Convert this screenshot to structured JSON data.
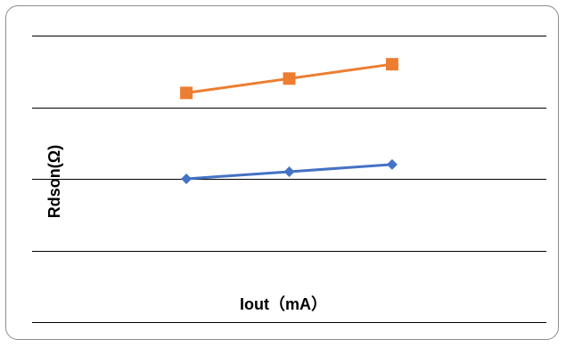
{
  "chart_data": {
    "type": "line",
    "title": "",
    "xlabel": "Iout（mA）",
    "ylabel": "Rdson(Ω)",
    "x": [
      1,
      2,
      3
    ],
    "xlim": [
      -0.5,
      4.5
    ],
    "ylim": [
      0,
      4
    ],
    "grid": true,
    "legend": "none",
    "series": [
      {
        "color": "#4472c4",
        "marker": "diamond",
        "values": [
          2.0,
          2.1,
          2.2
        ]
      },
      {
        "color": "#ed7d31",
        "marker": "square",
        "values": [
          3.2,
          3.4,
          3.6
        ]
      }
    ]
  }
}
